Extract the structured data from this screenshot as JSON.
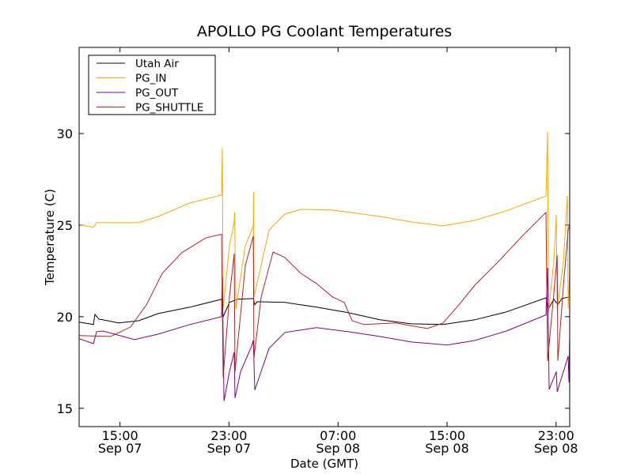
{
  "chart_data": {
    "type": "line",
    "title": "APOLLO PG Coolant Temperatures",
    "xlabel": "Date (GMT)",
    "ylabel": "Temperature (C)",
    "x_units": "hours since Sep 07 12:00 GMT",
    "xlim": [
      0,
      36
    ],
    "ylim": [
      14,
      34.7
    ],
    "grid": false,
    "legend_placement": "top-left",
    "yticks": [
      15,
      20,
      25,
      30
    ],
    "xticks": [
      {
        "x": 3,
        "time": "15:00",
        "date": "Sep 07"
      },
      {
        "x": 11,
        "time": "23:00",
        "date": "Sep 07"
      },
      {
        "x": 19,
        "time": "07:00",
        "date": "Sep 08"
      },
      {
        "x": 27,
        "time": "15:00",
        "date": "Sep 08"
      },
      {
        "x": 35,
        "time": "23:00",
        "date": "Sep 08"
      }
    ],
    "series": [
      {
        "name": "Utah Air",
        "color": "#000000",
        "points": [
          [
            0,
            19.7
          ],
          [
            1.05,
            19.57
          ],
          [
            1.16,
            20.13
          ],
          [
            1.45,
            19.87
          ],
          [
            2.9,
            19.66
          ],
          [
            4.36,
            19.78
          ],
          [
            5.81,
            20.17
          ],
          [
            8.13,
            20.52
          ],
          [
            10.45,
            20.95
          ],
          [
            10.57,
            20.0
          ],
          [
            11.03,
            20.78
          ],
          [
            11.61,
            20.95
          ],
          [
            12.78,
            20.99
          ],
          [
            12.89,
            20.65
          ],
          [
            13.07,
            20.82
          ],
          [
            15.1,
            20.78
          ],
          [
            17.42,
            20.52
          ],
          [
            19.74,
            20.22
          ],
          [
            22.07,
            19.83
          ],
          [
            24.39,
            19.61
          ],
          [
            26.71,
            19.57
          ],
          [
            29.04,
            19.83
          ],
          [
            31.36,
            20.26
          ],
          [
            34.26,
            21.03
          ],
          [
            34.44,
            20.43
          ],
          [
            34.84,
            20.95
          ],
          [
            35.13,
            20.65
          ],
          [
            35.42,
            20.99
          ],
          [
            36,
            21.08
          ]
        ]
      },
      {
        "name": "PG_IN",
        "color": "#ffa500",
        "points": [
          [
            0,
            25.04
          ],
          [
            1.05,
            24.87
          ],
          [
            1.28,
            25.13
          ],
          [
            4.36,
            25.13
          ],
          [
            5.81,
            25.47
          ],
          [
            8.13,
            26.21
          ],
          [
            10.45,
            26.64
          ],
          [
            10.51,
            29.22
          ],
          [
            10.57,
            20.43
          ],
          [
            11.03,
            23.88
          ],
          [
            11.38,
            25.17
          ],
          [
            11.41,
            25.69
          ],
          [
            11.5,
            20.43
          ],
          [
            12.2,
            23.88
          ],
          [
            12.78,
            24.96
          ],
          [
            12.8,
            26.81
          ],
          [
            12.83,
            21.08
          ],
          [
            13.94,
            24.74
          ],
          [
            15.1,
            25.6
          ],
          [
            16.26,
            25.86
          ],
          [
            18.58,
            25.82
          ],
          [
            22.07,
            25.47
          ],
          [
            24.39,
            25.17
          ],
          [
            26.71,
            24.96
          ],
          [
            29.04,
            25.26
          ],
          [
            31.36,
            25.78
          ],
          [
            34.26,
            26.59
          ],
          [
            34.38,
            30.09
          ],
          [
            34.44,
            20.22
          ],
          [
            34.84,
            23.02
          ],
          [
            35.02,
            25.56
          ],
          [
            35.08,
            20.34
          ],
          [
            35.54,
            23.02
          ],
          [
            35.83,
            26.59
          ],
          [
            35.89,
            20.43
          ],
          [
            36,
            22.5
          ]
        ]
      },
      {
        "name": "PG_OUT",
        "color": "#800080",
        "points": [
          [
            0,
            18.8
          ],
          [
            1.05,
            18.53
          ],
          [
            1.28,
            19.18
          ],
          [
            1.74,
            19.22
          ],
          [
            4.07,
            18.75
          ],
          [
            5.81,
            19.05
          ],
          [
            8.13,
            19.57
          ],
          [
            10.45,
            20.0
          ],
          [
            10.51,
            22.15
          ],
          [
            10.63,
            15.4
          ],
          [
            11.03,
            17.0
          ],
          [
            11.38,
            18.06
          ],
          [
            11.44,
            15.56
          ],
          [
            11.85,
            17.0
          ],
          [
            12.66,
            18.4
          ],
          [
            12.78,
            18.7
          ],
          [
            12.89,
            16.0
          ],
          [
            13.94,
            18.28
          ],
          [
            15.1,
            19.14
          ],
          [
            17.42,
            19.4
          ],
          [
            19.74,
            19.18
          ],
          [
            22.07,
            18.92
          ],
          [
            24.39,
            18.62
          ],
          [
            27.0,
            18.45
          ],
          [
            29.04,
            18.7
          ],
          [
            31.36,
            19.22
          ],
          [
            34.26,
            20.1
          ],
          [
            34.38,
            22.67
          ],
          [
            34.49,
            16.03
          ],
          [
            35.02,
            17.0
          ],
          [
            35.08,
            15.9
          ],
          [
            35.54,
            17.0
          ],
          [
            35.89,
            17.85
          ],
          [
            35.95,
            16.4
          ],
          [
            36,
            19.0
          ]
        ]
      },
      {
        "name": "PG_SHUTTLE",
        "color": "#b22222",
        "points": [
          [
            0,
            18.97
          ],
          [
            2.32,
            18.92
          ],
          [
            3.77,
            19.44
          ],
          [
            4.94,
            20.65
          ],
          [
            6.1,
            22.37
          ],
          [
            7.55,
            23.5
          ],
          [
            9.29,
            24.3
          ],
          [
            10.45,
            24.5
          ],
          [
            10.57,
            16.7
          ],
          [
            11.03,
            21.08
          ],
          [
            11.38,
            23.45
          ],
          [
            11.44,
            17.0
          ],
          [
            12.2,
            22.8
          ],
          [
            12.78,
            24.4
          ],
          [
            12.83,
            17.76
          ],
          [
            13.36,
            21.08
          ],
          [
            14.23,
            23.53
          ],
          [
            15.1,
            23.23
          ],
          [
            16.26,
            22.37
          ],
          [
            17.42,
            21.81
          ],
          [
            18.58,
            21.08
          ],
          [
            19.45,
            20.78
          ],
          [
            20.03,
            19.78
          ],
          [
            20.91,
            19.57
          ],
          [
            23.23,
            19.66
          ],
          [
            25.55,
            19.35
          ],
          [
            26.71,
            19.66
          ],
          [
            27.87,
            20.65
          ],
          [
            29.04,
            21.72
          ],
          [
            30.78,
            23.02
          ],
          [
            32.52,
            24.4
          ],
          [
            34.26,
            25.69
          ],
          [
            34.38,
            17.59
          ],
          [
            34.84,
            21.29
          ],
          [
            35.08,
            23.36
          ],
          [
            35.13,
            17.59
          ],
          [
            35.54,
            21.72
          ],
          [
            35.89,
            24.74
          ],
          [
            36,
            25.0
          ]
        ]
      }
    ]
  }
}
